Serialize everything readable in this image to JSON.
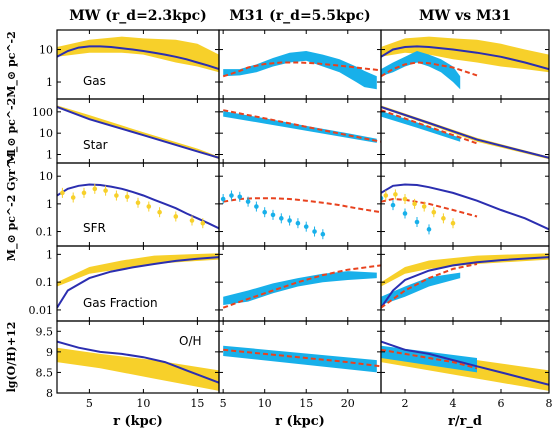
{
  "colors": {
    "mw_band": "#f7d02a",
    "m31_band": "#18b0ea",
    "model_mw": "#2b2eb0",
    "model_m31": "#e8421e",
    "frame": "#000000"
  },
  "chart_data": {
    "type": "line",
    "columns": [
      {
        "title": "MW (r_d=2.3kpc)",
        "xlabel": "r (kpc)",
        "xlim": [
          2,
          17
        ],
        "xticks": [
          5,
          10,
          15
        ]
      },
      {
        "title": "M31 (r_d=5.5kpc)",
        "xlabel": "r (kpc)",
        "xlim": [
          4.5,
          24
        ],
        "xticks": [
          5,
          10,
          15,
          20
        ]
      },
      {
        "title": "MW vs M31",
        "xlabel": "r/r_d",
        "xlim": [
          1,
          8
        ],
        "xticks": [
          2,
          4,
          6,
          8
        ]
      }
    ],
    "rows": [
      {
        "label": "Gas",
        "ylabel": "M_⊙ pc^-2",
        "scale": "log",
        "ylim": [
          0.3,
          40
        ],
        "yticks": [
          1,
          10
        ],
        "ytick_labels": [
          "1",
          "10"
        ]
      },
      {
        "label": "Star",
        "ylabel": "M_⊙ pc^-2",
        "scale": "log",
        "ylim": [
          0.4,
          400
        ],
        "yticks": [
          1,
          10,
          100
        ],
        "ytick_labels": [
          "1",
          "10",
          "100"
        ]
      },
      {
        "label": "SFR",
        "ylabel": "M_⊙ pc^-2 Gyr^-1",
        "scale": "log",
        "ylim": [
          0.03,
          30
        ],
        "yticks": [
          0.1,
          1,
          10
        ],
        "ytick_labels": [
          "0.1",
          "1",
          "10"
        ]
      },
      {
        "label": "Gas Fraction",
        "ylabel": "",
        "scale": "log",
        "ylim": [
          0.004,
          2
        ],
        "yticks": [
          0.01,
          0.1,
          1
        ],
        "ytick_labels": [
          "0.01",
          "0.1",
          "1"
        ]
      },
      {
        "label": "O/H",
        "ylabel": "lg(O/H)+12",
        "scale": "linear",
        "ylim": [
          8,
          9.75
        ],
        "yticks": [
          8,
          8.5,
          9,
          9.5
        ],
        "ytick_labels": [
          "8",
          "8.5",
          "9",
          "9.5"
        ]
      }
    ],
    "panels": {
      "0-0": [
        {
          "kind": "band",
          "color": "mw_band",
          "x": [
            2,
            5,
            8,
            10,
            13,
            15,
            17
          ],
          "low": [
            6,
            8,
            8,
            7,
            4,
            3,
            2
          ],
          "high": [
            12,
            20,
            25,
            22,
            20,
            15,
            7
          ]
        },
        {
          "kind": "line",
          "color": "model_mw",
          "x": [
            2,
            3,
            4,
            5,
            6,
            7,
            8,
            9,
            10,
            11,
            12,
            13,
            14,
            15,
            16,
            17
          ],
          "y": [
            6,
            9,
            11.5,
            12.5,
            12.5,
            12,
            11,
            10,
            9,
            8,
            7,
            6,
            5,
            4,
            3.2,
            2.5
          ]
        }
      ],
      "0-1": [
        {
          "kind": "band",
          "color": "m31_band",
          "x": [
            5,
            7,
            9,
            11,
            13,
            15,
            17,
            19,
            21,
            22,
            23.5
          ],
          "low": [
            1.5,
            1.6,
            2,
            3,
            4,
            4.5,
            3,
            2,
            1,
            0.7,
            0.6
          ],
          "high": [
            2.5,
            2.5,
            3.5,
            5.5,
            8,
            9,
            7,
            5,
            3,
            2.2,
            1.5
          ]
        },
        {
          "kind": "line",
          "color": "model_m31",
          "dashed": true,
          "x": [
            5,
            6,
            7,
            8,
            10,
            12,
            14,
            16,
            18,
            20,
            22,
            24
          ],
          "y": [
            1.5,
            1.8,
            2.2,
            2.8,
            3.6,
            4,
            4,
            3.8,
            3.4,
            3,
            2.6,
            2.3
          ]
        }
      ],
      "0-2": [
        {
          "kind": "band",
          "color": "mw_band",
          "x": [
            1,
            2,
            3,
            4,
            5,
            6,
            7,
            8
          ],
          "low": [
            6,
            8,
            7,
            5,
            4,
            3,
            2.5,
            2
          ],
          "high": [
            12,
            22,
            25,
            22,
            20,
            15,
            10,
            7
          ]
        },
        {
          "kind": "band",
          "color": "m31_band",
          "x": [
            1,
            1.5,
            2,
            2.5,
            3,
            3.5,
            4,
            4.3
          ],
          "low": [
            1.5,
            2,
            3,
            4,
            3,
            2,
            1,
            0.6
          ],
          "high": [
            2.5,
            4,
            6,
            9,
            7,
            5,
            3,
            1.5
          ]
        },
        {
          "kind": "line",
          "color": "model_mw",
          "x": [
            1,
            1.5,
            2,
            2.5,
            3,
            4,
            5,
            6,
            7,
            8
          ],
          "y": [
            6,
            10,
            12,
            12.5,
            12,
            10,
            8,
            6,
            4,
            2.5
          ]
        },
        {
          "kind": "line",
          "color": "model_m31",
          "dashed": true,
          "x": [
            1,
            1.5,
            2,
            2.5,
            3,
            4,
            5
          ],
          "y": [
            1.5,
            2.5,
            3.5,
            4,
            3.8,
            2.8,
            1.6
          ]
        }
      ],
      "1-0": [
        {
          "kind": "band",
          "color": "mw_band",
          "x": [
            2,
            5,
            10,
            15,
            17
          ],
          "low": [
            150,
            50,
            8,
            1.4,
            0.6
          ],
          "high": [
            200,
            70,
            11,
            1.9,
            0.8
          ]
        },
        {
          "kind": "line",
          "color": "model_mw",
          "x": [
            2,
            5,
            10,
            15,
            17
          ],
          "y": [
            170,
            45,
            8,
            1.4,
            0.7
          ]
        }
      ],
      "1-1": [
        {
          "kind": "band",
          "color": "m31_band",
          "x": [
            5,
            10,
            15,
            20,
            23.5
          ],
          "low": [
            60,
            28,
            13,
            6,
            3.5
          ],
          "high": [
            110,
            50,
            22,
            10,
            5.5
          ]
        },
        {
          "kind": "line",
          "color": "model_m31",
          "dashed": true,
          "x": [
            5,
            10,
            15,
            20,
            24
          ],
          "y": [
            120,
            50,
            20,
            8,
            4
          ]
        }
      ],
      "1-2": [
        {
          "kind": "band",
          "color": "mw_band",
          "x": [
            1,
            3,
            5,
            8
          ],
          "low": [
            150,
            25,
            4,
            0.6
          ],
          "high": [
            200,
            35,
            6,
            0.8
          ]
        },
        {
          "kind": "band",
          "color": "m31_band",
          "x": [
            1,
            2.5,
            4.3
          ],
          "low": [
            60,
            18,
            4
          ],
          "high": [
            110,
            32,
            6
          ]
        },
        {
          "kind": "line",
          "color": "model_mw",
          "x": [
            1,
            3,
            5,
            8
          ],
          "y": [
            170,
            30,
            5,
            0.7
          ]
        },
        {
          "kind": "line",
          "color": "model_m31",
          "dashed": true,
          "x": [
            1,
            3,
            5
          ],
          "y": [
            120,
            20,
            3.3
          ]
        }
      ],
      "2-0": [
        {
          "kind": "line",
          "color": "model_mw",
          "x": [
            2,
            3,
            4,
            5,
            6,
            7,
            8,
            9,
            10,
            11,
            12,
            13,
            14,
            15,
            16,
            17
          ],
          "y": [
            2,
            3.5,
            4.5,
            5,
            4.8,
            4.2,
            3.5,
            2.7,
            2,
            1.4,
            1,
            0.7,
            0.45,
            0.3,
            0.2,
            0.13
          ]
        },
        {
          "kind": "points",
          "color": "mw_band",
          "x": [
            2.5,
            3.5,
            4.5,
            5.5,
            6.5,
            7.5,
            8.5,
            9.5,
            10.5,
            11.5,
            13,
            14.5,
            15.5
          ],
          "y": [
            2.5,
            1.7,
            2.5,
            3.5,
            3,
            2,
            1.8,
            1.1,
            0.8,
            0.5,
            0.35,
            0.25,
            0.2
          ]
        }
      ],
      "2-1": [
        {
          "kind": "line",
          "color": "model_m31",
          "dashed": true,
          "x": [
            5,
            7,
            9,
            11,
            13,
            15,
            17,
            19,
            21,
            24
          ],
          "y": [
            1.2,
            1.5,
            1.6,
            1.6,
            1.5,
            1.3,
            1.1,
            0.9,
            0.7,
            0.5
          ]
        },
        {
          "kind": "points",
          "color": "m31_band",
          "x": [
            5,
            6,
            7,
            8,
            9,
            10,
            11,
            12,
            13,
            14,
            15,
            16,
            17
          ],
          "y": [
            1.5,
            2,
            1.8,
            1.2,
            0.8,
            0.5,
            0.4,
            0.3,
            0.25,
            0.2,
            0.15,
            0.1,
            0.08
          ]
        }
      ],
      "2-2": [
        {
          "kind": "line",
          "color": "model_mw",
          "x": [
            1,
            1.5,
            2,
            2.5,
            3,
            4,
            5,
            6,
            7,
            8
          ],
          "y": [
            2.5,
            4.5,
            5,
            4.8,
            4,
            2.5,
            1.3,
            0.6,
            0.3,
            0.12
          ]
        },
        {
          "kind": "line",
          "color": "model_m31",
          "dashed": true,
          "x": [
            1,
            1.5,
            2,
            3,
            4,
            5
          ],
          "y": [
            1.2,
            1.5,
            1.4,
            1,
            0.6,
            0.35
          ]
        },
        {
          "kind": "points",
          "color": "mw_band",
          "x": [
            1.2,
            1.6,
            2,
            2.4,
            2.8,
            3.2,
            3.6,
            4
          ],
          "y": [
            2,
            2.2,
            1.5,
            1,
            0.8,
            0.5,
            0.3,
            0.2
          ]
        },
        {
          "kind": "points",
          "color": "m31_band",
          "x": [
            1,
            1.5,
            2,
            2.5,
            3
          ],
          "y": [
            1.6,
            0.9,
            0.45,
            0.22,
            0.12
          ]
        }
      ],
      "3-0": [
        {
          "kind": "band",
          "color": "mw_band",
          "x": [
            2,
            5,
            8,
            11,
            14,
            17
          ],
          "low": [
            0.07,
            0.2,
            0.3,
            0.45,
            0.55,
            0.65
          ],
          "high": [
            0.1,
            0.35,
            0.6,
            0.9,
            1,
            1.1
          ]
        },
        {
          "kind": "line",
          "color": "model_mw",
          "x": [
            2,
            3,
            5,
            7,
            9,
            11,
            13,
            15,
            17
          ],
          "y": [
            0.012,
            0.05,
            0.14,
            0.24,
            0.34,
            0.45,
            0.58,
            0.7,
            0.8
          ]
        }
      ],
      "3-1": [
        {
          "kind": "band",
          "color": "m31_band",
          "x": [
            5,
            8,
            11,
            14,
            17,
            20,
            23.5
          ],
          "low": [
            0.015,
            0.02,
            0.04,
            0.07,
            0.1,
            0.12,
            0.14
          ],
          "high": [
            0.03,
            0.05,
            0.09,
            0.14,
            0.2,
            0.25,
            0.22
          ]
        },
        {
          "kind": "line",
          "color": "model_m31",
          "dashed": true,
          "x": [
            5,
            8,
            11,
            14,
            17,
            20,
            24
          ],
          "y": [
            0.012,
            0.025,
            0.05,
            0.1,
            0.18,
            0.28,
            0.4
          ]
        }
      ],
      "3-2": [
        {
          "kind": "band",
          "color": "mw_band",
          "x": [
            1,
            2,
            3,
            5,
            8
          ],
          "low": [
            0.07,
            0.2,
            0.3,
            0.45,
            0.65
          ],
          "high": [
            0.1,
            0.35,
            0.6,
            0.9,
            1.1
          ]
        },
        {
          "kind": "band",
          "color": "m31_band",
          "x": [
            1,
            2,
            3,
            4.3
          ],
          "low": [
            0.015,
            0.03,
            0.07,
            0.14
          ],
          "high": [
            0.03,
            0.07,
            0.15,
            0.22
          ]
        },
        {
          "kind": "line",
          "color": "model_mw",
          "x": [
            1,
            1.5,
            2,
            3,
            4,
            5,
            6,
            8
          ],
          "y": [
            0.012,
            0.05,
            0.12,
            0.26,
            0.4,
            0.52,
            0.62,
            0.8
          ]
        },
        {
          "kind": "line",
          "color": "model_m31",
          "dashed": true,
          "x": [
            1,
            2,
            3,
            4,
            5
          ],
          "y": [
            0.012,
            0.05,
            0.14,
            0.3,
            0.45
          ]
        }
      ],
      "4-0": [
        {
          "kind": "band",
          "color": "mw_band",
          "x": [
            2,
            6,
            11,
            17
          ],
          "low": [
            8.75,
            8.6,
            8.35,
            8.05
          ],
          "high": [
            9.1,
            8.95,
            8.8,
            8.55
          ]
        },
        {
          "kind": "line",
          "color": "model_mw",
          "x": [
            2,
            4,
            6,
            8,
            10,
            12,
            14,
            17
          ],
          "y": [
            9.25,
            9.1,
            9,
            8.95,
            8.87,
            8.75,
            8.55,
            8.25
          ]
        }
      ],
      "4-1": [
        {
          "kind": "band",
          "color": "m31_band",
          "x": [
            5,
            23.5
          ],
          "low": [
            8.9,
            8.5
          ],
          "high": [
            9.15,
            8.8
          ]
        },
        {
          "kind": "line",
          "color": "model_m31",
          "dashed": true,
          "x": [
            5,
            10,
            15,
            20,
            24
          ],
          "y": [
            9.05,
            8.95,
            8.85,
            8.75,
            8.65
          ]
        }
      ],
      "4-2": [
        {
          "kind": "band",
          "color": "mw_band",
          "x": [
            1,
            3,
            5,
            8
          ],
          "low": [
            8.75,
            8.55,
            8.35,
            8.05
          ],
          "high": [
            9.1,
            8.95,
            8.8,
            8.55
          ]
        },
        {
          "kind": "band",
          "color": "m31_band",
          "x": [
            1,
            5
          ],
          "low": [
            8.85,
            8.5
          ],
          "high": [
            9.15,
            8.85
          ]
        },
        {
          "kind": "line",
          "color": "model_mw",
          "x": [
            1,
            2,
            3,
            4,
            5,
            6,
            8
          ],
          "y": [
            9.25,
            9.05,
            8.95,
            8.8,
            8.65,
            8.5,
            8.2
          ]
        },
        {
          "kind": "line",
          "color": "model_m31",
          "dashed": true,
          "x": [
            1,
            2,
            3,
            4,
            5
          ],
          "y": [
            9.05,
            8.95,
            8.85,
            8.75,
            8.6
          ]
        }
      ]
    }
  }
}
